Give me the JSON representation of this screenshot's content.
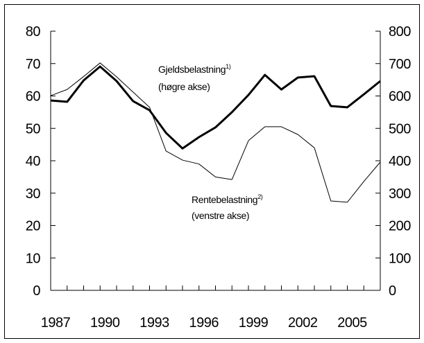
{
  "chart_data": {
    "type": "line",
    "x": [
      1987,
      1988,
      1989,
      1990,
      1991,
      1992,
      1993,
      1994,
      1995,
      1996,
      1997,
      1998,
      1999,
      2000,
      2001,
      2002,
      2003,
      2004,
      2005,
      2006,
      2007
    ],
    "xlim": [
      1987,
      2007
    ],
    "xticks": [
      1987,
      1990,
      1993,
      1996,
      1999,
      2002,
      2005
    ],
    "ylim": [
      0,
      80
    ],
    "yticks": [
      0,
      10,
      20,
      30,
      40,
      50,
      60,
      70,
      80
    ],
    "y2lim": [
      0,
      800
    ],
    "y2ticks": [
      0,
      100,
      200,
      300,
      400,
      500,
      600,
      700,
      800
    ],
    "series": [
      {
        "name": "Gjeldsbelastning",
        "note": "1)",
        "axis_label": "(høgre akse)",
        "axis": "y2",
        "color": "#000000",
        "width": 3,
        "values": [
          586,
          582,
          648,
          691,
          646,
          584,
          556,
          486,
          438,
          473,
          503,
          550,
          603,
          665,
          620,
          657,
          661,
          569,
          565,
          605,
          646
        ]
      },
      {
        "name": "Rentebelastning",
        "note": "2)",
        "axis_label": "(venstre akse)",
        "axis": "y",
        "color": "#000000",
        "width": 1,
        "values": [
          60.1,
          62,
          66,
          70.2,
          65.9,
          61.2,
          56.5,
          43,
          40.2,
          39,
          35,
          34.2,
          46.2,
          50.5,
          50.5,
          48.1,
          44,
          27.6,
          27.2,
          33.6,
          39.6
        ]
      }
    ]
  }
}
